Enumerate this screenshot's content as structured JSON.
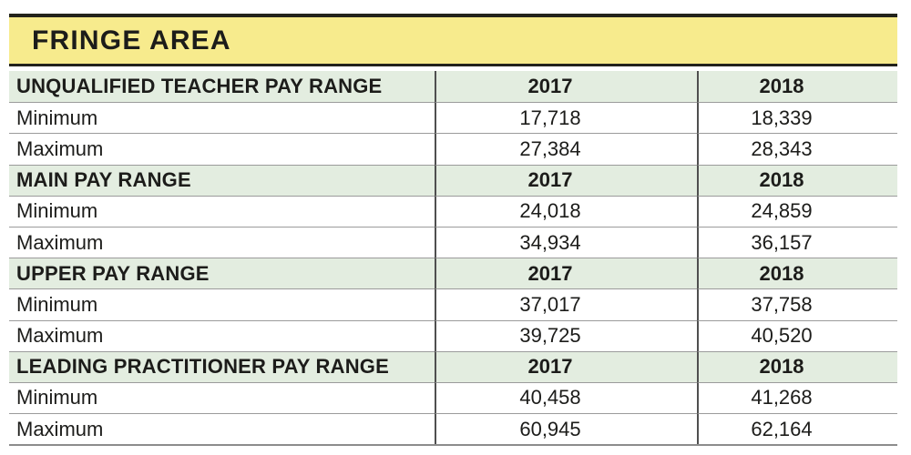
{
  "header": {
    "title": "FRINGE AREA"
  },
  "chart_data": {
    "type": "table",
    "title": "FRINGE AREA",
    "year_columns": [
      "2017",
      "2018"
    ],
    "sections": [
      {
        "name": "UNQUALIFIED TEACHER PAY RANGE",
        "years": [
          "2017",
          "2018"
        ],
        "rows": [
          {
            "label": "Minimum",
            "values": [
              "17,718",
              "18,339"
            ]
          },
          {
            "label": "Maximum",
            "values": [
              "27,384",
              "28,343"
            ]
          }
        ]
      },
      {
        "name": "MAIN PAY RANGE",
        "years": [
          "2017",
          "2018"
        ],
        "rows": [
          {
            "label": "Minimum",
            "values": [
              "24,018",
              "24,859"
            ]
          },
          {
            "label": "Maximum",
            "values": [
              "34,934",
              "36,157"
            ]
          }
        ]
      },
      {
        "name": "UPPER PAY RANGE",
        "years": [
          "2017",
          "2018"
        ],
        "rows": [
          {
            "label": "Minimum",
            "values": [
              "37,017",
              "37,758"
            ]
          },
          {
            "label": "Maximum",
            "values": [
              "39,725",
              "40,520"
            ]
          }
        ]
      },
      {
        "name": "LEADING PRACTITIONER PAY RANGE",
        "years": [
          "2017",
          "2018"
        ],
        "rows": [
          {
            "label": "Minimum",
            "values": [
              "40,458",
              "41,268"
            ]
          },
          {
            "label": "Maximum",
            "values": [
              "60,945",
              "62,164"
            ]
          }
        ]
      }
    ]
  },
  "colors": {
    "title_bg": "#F7EB8D",
    "title_border": "#23231B",
    "section_bg": "#E3EDE0",
    "row_line": "#9B9B9B",
    "column_line": "#4F4F4F",
    "bottom_border": "#8C8C8C",
    "text": "#1C1C1A",
    "page_bg": "#FFFFFF"
  }
}
